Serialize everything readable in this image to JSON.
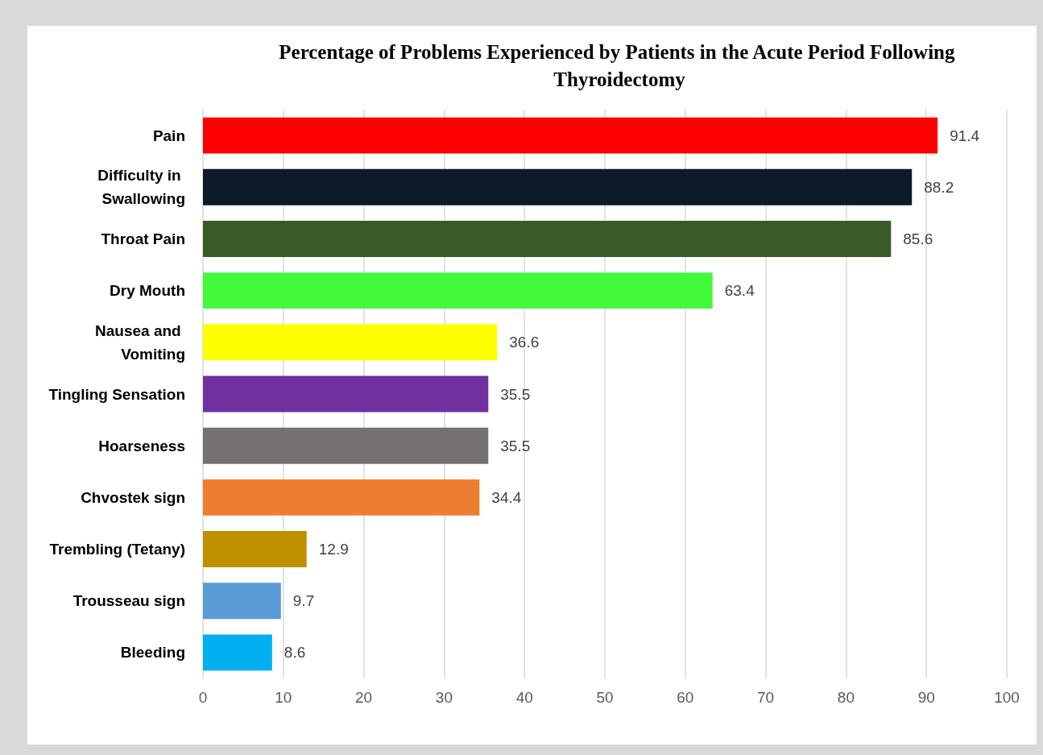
{
  "chart_data": {
    "type": "bar",
    "orientation": "horizontal",
    "title": "Percentage of Problems Experienced by Patients in the Acute Period Following Thyroidectomy",
    "categories": [
      "Pain",
      "Difficulty in Swallowing",
      "Throat Pain",
      "Dry Mouth",
      "Nausea and Vomiting",
      "Tingling Sensation",
      "Hoarseness",
      "Chvostek sign",
      "Trembling (Tetany)",
      "Trousseau sign",
      "Bleeding"
    ],
    "values": [
      91.4,
      88.2,
      85.6,
      63.4,
      36.6,
      35.5,
      35.5,
      34.4,
      12.9,
      9.7,
      8.6
    ],
    "colors": [
      "#ff0000",
      "#0c1a2a",
      "#3a5a27",
      "#44f83c",
      "#ffff00",
      "#7030a0",
      "#767171",
      "#ed7d31",
      "#bf9000",
      "#5b9bd5",
      "#00b0f0"
    ],
    "xlim": [
      0,
      100
    ],
    "xticks": [
      0,
      10,
      20,
      30,
      40,
      50,
      60,
      70,
      80,
      90,
      100
    ],
    "grid": "x",
    "data_labels": true
  }
}
